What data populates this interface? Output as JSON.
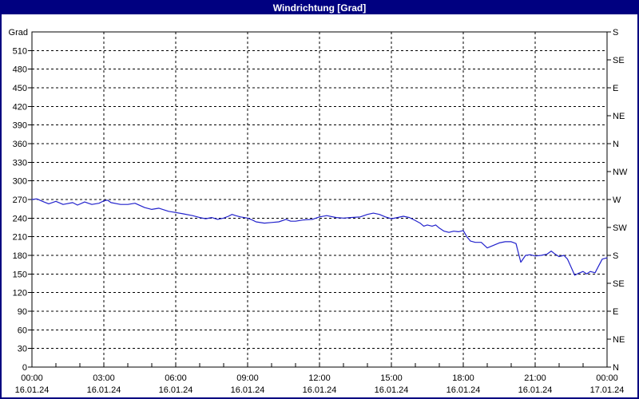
{
  "window": {
    "title": "Windrichtung [Grad]"
  },
  "colors": {
    "window_border": "#000080",
    "titlebar_bg": "#000080",
    "titlebar_text": "#ffffff",
    "background": "#ffffff",
    "grid": "#000000",
    "axis": "#000000",
    "text": "#000000"
  },
  "chart_data": {
    "type": "line",
    "title": "Windrichtung [Grad]",
    "y_axis_label": "Grad",
    "ylim": [
      0,
      540
    ],
    "xlim_hours": [
      0,
      24
    ],
    "grid_style": "dashed",
    "legend_position": "none",
    "y_left_ticks": [
      0,
      30,
      60,
      90,
      120,
      150,
      180,
      210,
      240,
      270,
      300,
      330,
      360,
      390,
      420,
      450,
      480,
      510
    ],
    "grid_y_deg": [
      30,
      60,
      90,
      120,
      150,
      180,
      210,
      240,
      270,
      300,
      330,
      360,
      390,
      420,
      450,
      480,
      510
    ],
    "grid_x_hours": [
      3,
      6,
      9,
      12,
      15,
      18,
      21
    ],
    "x_minor_tick_every_hours": 1,
    "y_right_ticks": [
      {
        "deg": 0,
        "label": "N"
      },
      {
        "deg": 45,
        "label": "NE"
      },
      {
        "deg": 90,
        "label": "E"
      },
      {
        "deg": 135,
        "label": "SE"
      },
      {
        "deg": 180,
        "label": "S"
      },
      {
        "deg": 225,
        "label": "SW"
      },
      {
        "deg": 270,
        "label": "W"
      },
      {
        "deg": 315,
        "label": "NW"
      },
      {
        "deg": 360,
        "label": "N"
      },
      {
        "deg": 405,
        "label": "NE"
      },
      {
        "deg": 450,
        "label": "E"
      },
      {
        "deg": 495,
        "label": "SE"
      },
      {
        "deg": 540,
        "label": "S"
      }
    ],
    "x_ticks": [
      {
        "hours": 0,
        "time": "00:00",
        "date": "16.01.24"
      },
      {
        "hours": 3,
        "time": "03:00",
        "date": "16.01.24"
      },
      {
        "hours": 6,
        "time": "06:00",
        "date": "16.01.24"
      },
      {
        "hours": 9,
        "time": "09:00",
        "date": "16.01.24"
      },
      {
        "hours": 12,
        "time": "12:00",
        "date": "16.01.24"
      },
      {
        "hours": 15,
        "time": "15:00",
        "date": "16.01.24"
      },
      {
        "hours": 18,
        "time": "18:00",
        "date": "16.01.24"
      },
      {
        "hours": 21,
        "time": "21:00",
        "date": "16.01.24"
      },
      {
        "hours": 24,
        "time": "00:00",
        "date": "17.01.24"
      }
    ],
    "series": [
      {
        "name": "Windrichtung",
        "unit": "Grad",
        "color": "#2222cc",
        "points": [
          [
            0,
            270
          ],
          [
            0.2,
            271
          ],
          [
            0.5,
            266
          ],
          [
            0.7,
            263
          ],
          [
            1,
            267
          ],
          [
            1.3,
            262
          ],
          [
            1.7,
            265
          ],
          [
            1.9,
            261
          ],
          [
            2.2,
            266
          ],
          [
            2.5,
            262
          ],
          [
            2.8,
            264
          ],
          [
            3,
            268
          ],
          [
            3.15,
            269
          ],
          [
            3.3,
            265
          ],
          [
            3.7,
            262
          ],
          [
            4,
            262
          ],
          [
            4.3,
            264
          ],
          [
            4.7,
            257
          ],
          [
            5,
            254
          ],
          [
            5.3,
            256
          ],
          [
            5.7,
            251
          ],
          [
            6,
            249
          ],
          [
            6.3,
            247
          ],
          [
            6.7,
            244
          ],
          [
            7,
            241
          ],
          [
            7.25,
            239
          ],
          [
            7.5,
            241
          ],
          [
            7.75,
            238
          ],
          [
            8,
            240
          ],
          [
            8.2,
            243
          ],
          [
            8.35,
            246
          ],
          [
            8.5,
            244
          ],
          [
            8.7,
            242
          ],
          [
            9,
            240
          ],
          [
            9.2,
            237
          ],
          [
            9.35,
            234
          ],
          [
            9.7,
            232
          ],
          [
            10,
            233
          ],
          [
            10.3,
            234
          ],
          [
            10.6,
            238
          ],
          [
            10.8,
            235
          ],
          [
            11,
            235
          ],
          [
            11.3,
            237
          ],
          [
            11.7,
            238
          ],
          [
            12,
            242
          ],
          [
            12.3,
            244
          ],
          [
            12.7,
            241
          ],
          [
            13,
            240
          ],
          [
            13.3,
            241
          ],
          [
            13.7,
            242
          ],
          [
            14,
            246
          ],
          [
            14.25,
            248
          ],
          [
            14.5,
            246
          ],
          [
            14.75,
            242
          ],
          [
            15,
            239
          ],
          [
            15.25,
            241
          ],
          [
            15.5,
            243
          ],
          [
            15.75,
            241
          ],
          [
            16,
            236
          ],
          [
            16.2,
            232
          ],
          [
            16.35,
            227
          ],
          [
            16.5,
            229
          ],
          [
            16.7,
            227
          ],
          [
            16.85,
            229
          ],
          [
            17,
            224
          ],
          [
            17.2,
            219
          ],
          [
            17.4,
            217
          ],
          [
            17.6,
            219
          ],
          [
            17.8,
            218
          ],
          [
            18,
            220
          ],
          [
            18.15,
            210
          ],
          [
            18.3,
            203
          ],
          [
            18.5,
            201
          ],
          [
            18.75,
            201
          ],
          [
            19,
            192
          ],
          [
            19.25,
            196
          ],
          [
            19.5,
            200
          ],
          [
            19.75,
            202
          ],
          [
            20,
            202
          ],
          [
            20.2,
            199
          ],
          [
            20.4,
            169
          ],
          [
            20.6,
            180
          ],
          [
            20.8,
            181
          ],
          [
            21,
            179
          ],
          [
            21.25,
            180
          ],
          [
            21.5,
            182
          ],
          [
            21.67,
            187
          ],
          [
            21.8,
            183
          ],
          [
            22,
            178
          ],
          [
            22.2,
            180
          ],
          [
            22.35,
            174
          ],
          [
            22.5,
            161
          ],
          [
            22.65,
            148
          ],
          [
            22.8,
            151
          ],
          [
            23,
            154
          ],
          [
            23.15,
            150
          ],
          [
            23.3,
            154
          ],
          [
            23.5,
            152
          ],
          [
            23.65,
            163
          ],
          [
            23.8,
            174
          ],
          [
            24,
            176
          ]
        ]
      }
    ]
  }
}
